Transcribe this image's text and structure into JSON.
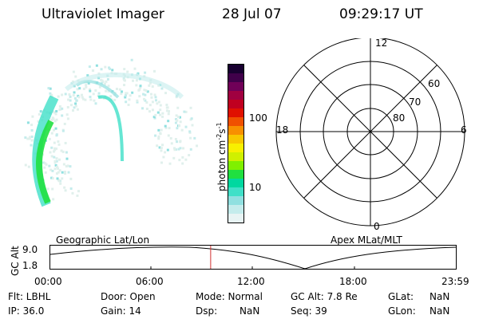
{
  "header": {
    "title": "Ultraviolet Imager",
    "date": "28 Jul 07",
    "time": "09:29:17 UT"
  },
  "colorbar": {
    "label": "photon cm",
    "label_sup1": "-2",
    "label_mid": "s",
    "label_sup2": "-1",
    "tick_100": "100",
    "tick_10": "10",
    "colors": [
      "#e8f4f4",
      "#c4ecec",
      "#90e0e0",
      "#40e0c8",
      "#00d8a0",
      "#20e040",
      "#80f000",
      "#d0f000",
      "#f8f000",
      "#f8c800",
      "#f89000",
      "#f05000",
      "#e01000",
      "#c00020",
      "#a00040",
      "#700058",
      "#40004a",
      "#180030"
    ]
  },
  "polar_plot": {
    "label_top": "12",
    "label_left": "18",
    "label_right": "6",
    "label_bottom": "0",
    "lat_60": "60",
    "lat_70": "70",
    "lat_80": "80"
  },
  "timeline": {
    "left_label": "Geographic Lat/Lon",
    "right_label": "Apex MLat/MLT",
    "y_axis_label": "GC Alt",
    "y_top": "9.0",
    "y_bottom": "1.8",
    "x_ticks": [
      "00:00",
      "06:00",
      "12:00",
      "18:00",
      "23:59"
    ],
    "current_time_hours": 9.49,
    "marker_color": "#d03030"
  },
  "footer": {
    "flt": "Flt: LBHL",
    "ip": "IP: 36.0",
    "door": "Door: Open",
    "gain": "Gain: 14",
    "mode": "Mode: Normal",
    "dsp_label": "Dsp:",
    "dsp_value": "NaN",
    "gc_alt": "GC Alt: 7.8 Re",
    "seq": "Seq: 39",
    "glat_label": "GLat:",
    "glat_value": "NaN",
    "glon_label": "GLon:",
    "glon_value": "NaN"
  }
}
